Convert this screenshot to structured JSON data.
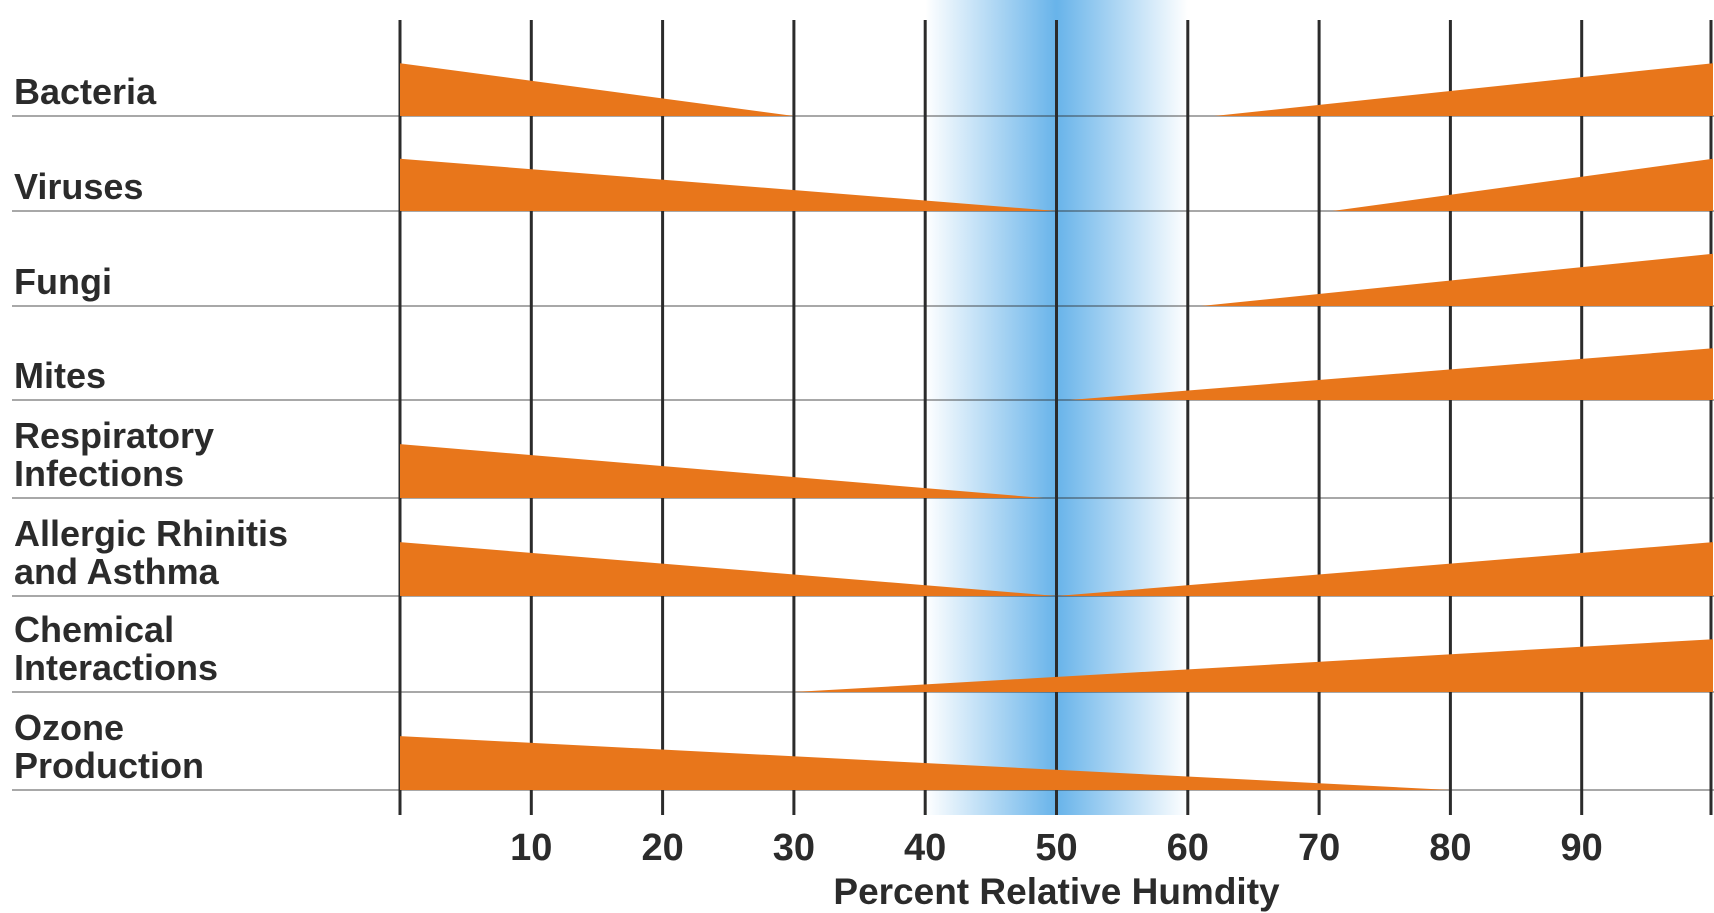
{
  "chart_data": {
    "type": "area",
    "xlabel": "Percent Relative Humdity",
    "xlim": [
      0,
      100
    ],
    "ticks": [
      10,
      20,
      30,
      40,
      50,
      60,
      70,
      80,
      90
    ],
    "optimal_zone": [
      40,
      60
    ],
    "grid": true,
    "categories": [
      {
        "label_lines": [
          "Bacteria"
        ],
        "segments": [
          {
            "from": 0,
            "to": 30,
            "max": 0.55,
            "peak": "left"
          },
          {
            "from": 62,
            "to": 100,
            "max": 0.55,
            "peak": "right"
          }
        ]
      },
      {
        "label_lines": [
          "Viruses"
        ],
        "segments": [
          {
            "from": 0,
            "to": 50,
            "max": 0.55,
            "peak": "left"
          },
          {
            "from": 71,
            "to": 100,
            "max": 0.55,
            "peak": "right"
          }
        ]
      },
      {
        "label_lines": [
          "Fungi"
        ],
        "segments": [
          {
            "from": 61,
            "to": 100,
            "max": 0.55,
            "peak": "right"
          }
        ]
      },
      {
        "label_lines": [
          "Mites"
        ],
        "segments": [
          {
            "from": 51,
            "to": 100,
            "max": 0.55,
            "peak": "right"
          }
        ]
      },
      {
        "label_lines": [
          "Respiratory",
          "Infections"
        ],
        "segments": [
          {
            "from": 0,
            "to": 49,
            "max": 0.55,
            "peak": "left"
          }
        ]
      },
      {
        "label_lines": [
          "Allergic Rhinitis",
          "and Asthma"
        ],
        "segments": [
          {
            "from": 0,
            "to": 50,
            "max": 0.55,
            "peak": "left"
          },
          {
            "from": 50,
            "to": 100,
            "max": 0.55,
            "peak": "right"
          }
        ]
      },
      {
        "label_lines": [
          "Chemical",
          "Interactions"
        ],
        "segments": [
          {
            "from": 30,
            "to": 100,
            "max": 0.55,
            "peak": "right"
          }
        ]
      },
      {
        "label_lines": [
          "Ozone",
          "Production"
        ],
        "segments": [
          {
            "from": 0,
            "to": 80,
            "max": 0.55,
            "peak": "left"
          }
        ]
      }
    ],
    "colors": {
      "bar": "#e8761b",
      "zone": "#4da6e6",
      "grid": "#2b2b2b",
      "text": "#2b2b2b"
    }
  }
}
